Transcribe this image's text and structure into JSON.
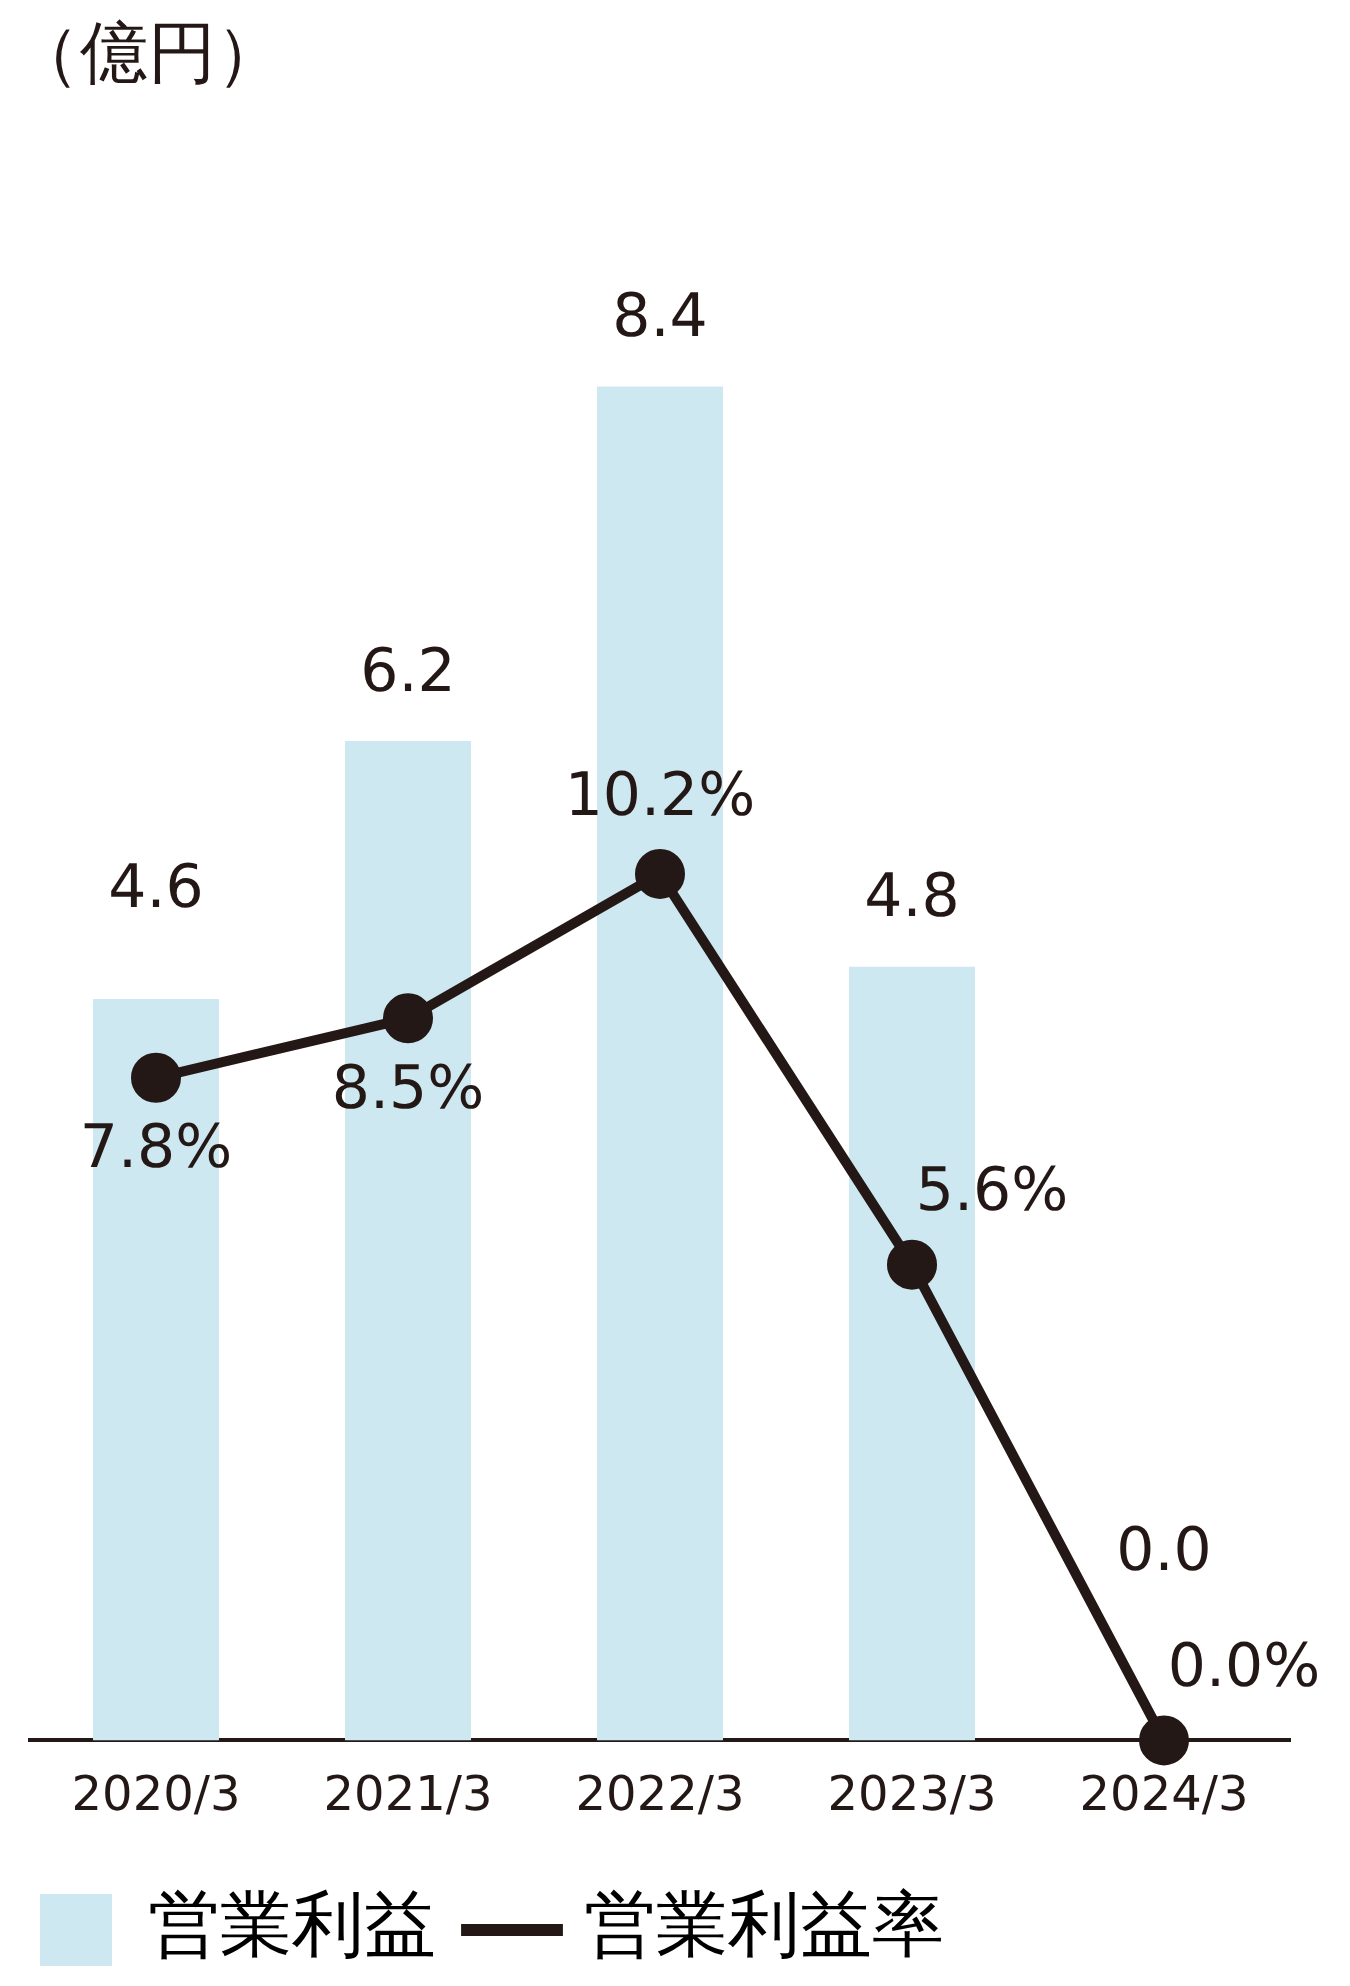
{
  "chart_data": {
    "type": "bar",
    "annotations": [
      "（億円）"
    ],
    "categories": [
      "2020/3",
      "2021/3",
      "2022/3",
      "2023/3",
      "2024/3"
    ],
    "legend": "bottom",
    "marker": "circle",
    "series": [
      {
        "name": "営業利益",
        "color": "#cde8f1",
        "colors": [
          "#cde8f1",
          "#cde8f1",
          "#cde8f1",
          "#cde8f1",
          "#00b0c8"
        ],
        "values": [
          4.6,
          6.2,
          8.4,
          4.8,
          0.0
        ],
        "value_labels": [
          "4.6",
          "6.2",
          "8.4",
          "4.8",
          "0.0"
        ]
      },
      {
        "name": "営業利益率",
        "type": "line",
        "axis": "y2",
        "color": "#231815",
        "values": [
          7.8,
          8.5,
          10.2,
          5.6,
          0.0
        ],
        "value_labels": [
          "7.8%",
          "8.5%",
          "10.2%",
          "5.6%",
          "0.0%"
        ]
      }
    ]
  }
}
